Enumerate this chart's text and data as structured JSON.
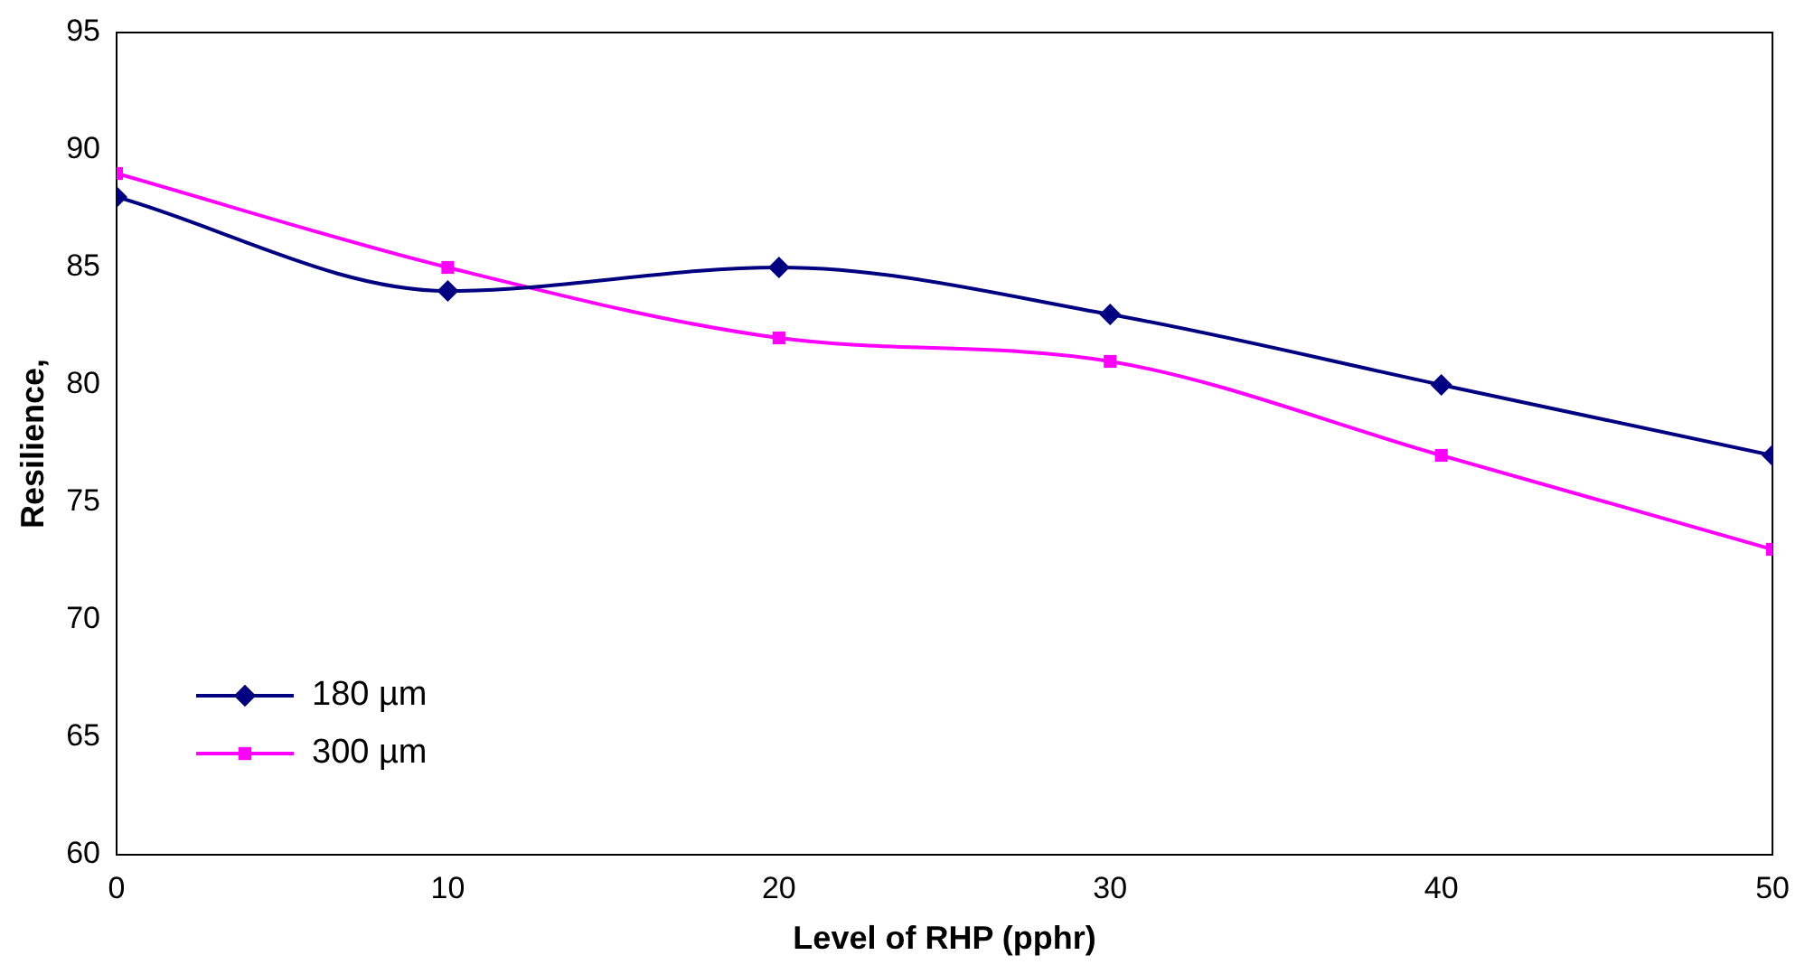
{
  "chart_data": {
    "type": "line",
    "xlabel": "Level of RHP (pphr)",
    "ylabel": "Resilience,",
    "x": [
      0,
      10,
      20,
      30,
      40,
      50
    ],
    "series": [
      {
        "name": "180 µm",
        "color": "#000080",
        "marker": "diamond",
        "values": [
          88,
          84,
          85,
          83,
          80,
          77
        ]
      },
      {
        "name": "300 µm",
        "color": "#ff00ff",
        "marker": "square",
        "values": [
          89,
          85,
          82,
          81,
          77,
          73
        ]
      }
    ],
    "xlim": [
      0,
      50
    ],
    "xticks": [
      0,
      10,
      20,
      30,
      40,
      50
    ],
    "ylim": [
      60,
      95
    ],
    "yticks": [
      60,
      65,
      70,
      75,
      80,
      85,
      90,
      95
    ],
    "grid": false,
    "legend": "bottom left",
    "line_style": "solid"
  }
}
